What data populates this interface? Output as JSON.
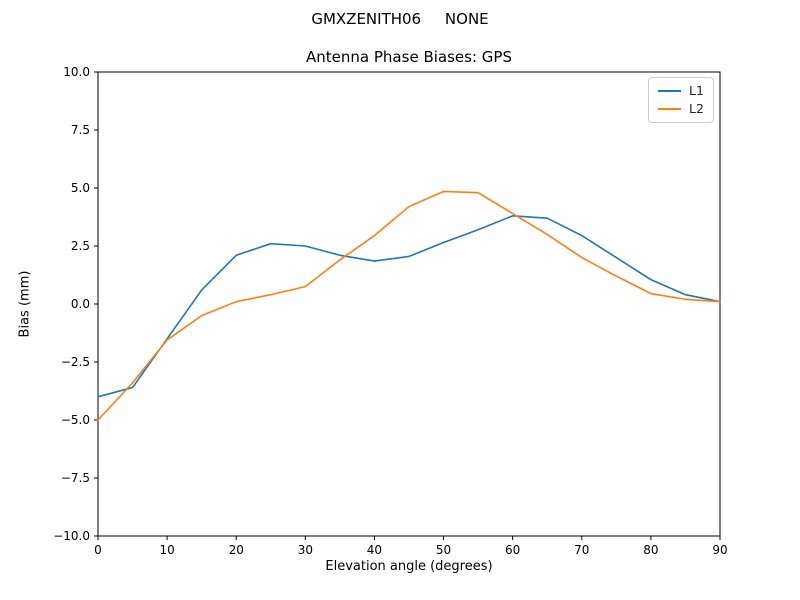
{
  "chart_data": {
    "type": "line",
    "suptitle": "GMXZENITH06     NONE",
    "title": "Antenna Phase Biases: GPS",
    "xlabel": "Elevation angle (degrees)",
    "ylabel": "Bias (mm)",
    "xlim": [
      0,
      90
    ],
    "ylim": [
      -10,
      10
    ],
    "xticks": [
      0,
      10,
      20,
      30,
      40,
      50,
      60,
      70,
      80,
      90
    ],
    "yticks": [
      -10,
      -7.5,
      -5,
      -2.5,
      0,
      2.5,
      5,
      7.5,
      10
    ],
    "ytick_labels": [
      "−10.0",
      "−7.5",
      "−5.0",
      "−2.5",
      "0.0",
      "2.5",
      "5.0",
      "7.5",
      "10.0"
    ],
    "grid": false,
    "legend_position": "upper right",
    "axis_color": "#000000",
    "x": [
      0,
      5,
      10,
      15,
      20,
      25,
      30,
      35,
      40,
      45,
      50,
      55,
      60,
      65,
      70,
      75,
      80,
      85,
      90
    ],
    "series": [
      {
        "name": "L1",
        "color": "#1f77b4",
        "values": [
          -4.0,
          -3.6,
          -1.5,
          0.6,
          2.1,
          2.6,
          2.5,
          2.1,
          1.85,
          2.05,
          2.65,
          3.2,
          3.8,
          3.7,
          2.95,
          2.0,
          1.05,
          0.4,
          0.1
        ]
      },
      {
        "name": "L2",
        "color": "#ff7f0e",
        "values": [
          -5.0,
          -3.4,
          -1.55,
          -0.5,
          0.1,
          0.4,
          0.75,
          1.9,
          2.95,
          4.2,
          4.85,
          4.8,
          3.9,
          3.0,
          2.0,
          1.2,
          0.45,
          0.2,
          0.1
        ]
      }
    ]
  }
}
